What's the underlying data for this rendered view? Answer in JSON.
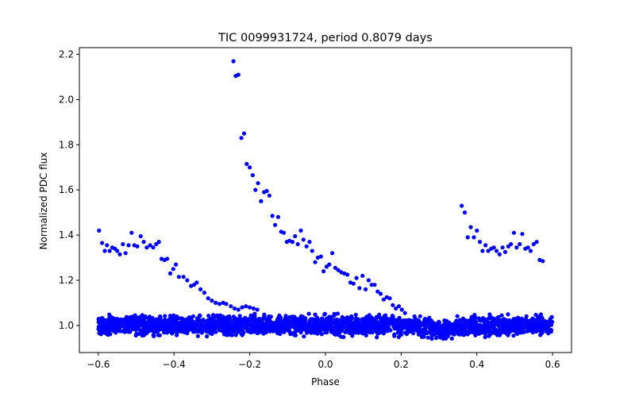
{
  "chart_data": {
    "type": "scatter",
    "title": "TIC 0099931724, period 0.8079 days",
    "xlabel": "Phase",
    "ylabel": "Normalized PDC flux",
    "xlim": [
      -0.65,
      0.65
    ],
    "ylim": [
      0.88,
      2.23
    ],
    "xticks": [
      -0.6,
      -0.4,
      -0.2,
      0.0,
      0.2,
      0.4,
      0.6
    ],
    "xtick_labels": [
      "−0.6",
      "−0.4",
      "−0.2",
      "0.0",
      "0.2",
      "0.4",
      "0.6"
    ],
    "yticks": [
      1.0,
      1.2,
      1.4,
      1.6,
      1.8,
      2.0,
      2.2
    ],
    "ytick_labels": [
      "1.0",
      "1.2",
      "1.4",
      "1.6",
      "1.8",
      "2.0",
      "2.2"
    ],
    "grid": false,
    "legend": "none",
    "marker_color": "#0000ff",
    "baseline_band": {
      "description": "dense cloud of points spanning the full phase range",
      "x_range": [
        -0.6,
        0.6
      ],
      "y_center": 1.0,
      "y_spread": [
        0.94,
        1.06
      ]
    },
    "series": [
      {
        "values": [
          {
            "x": -0.598,
            "y": 1.42
          },
          {
            "x": -0.59,
            "y": 1.365
          },
          {
            "x": -0.583,
            "y": 1.33
          },
          {
            "x": -0.577,
            "y": 1.355
          },
          {
            "x": -0.57,
            "y": 1.33
          },
          {
            "x": -0.563,
            "y": 1.345
          },
          {
            "x": -0.556,
            "y": 1.34
          },
          {
            "x": -0.55,
            "y": 1.33
          },
          {
            "x": -0.543,
            "y": 1.315
          },
          {
            "x": -0.535,
            "y": 1.36
          },
          {
            "x": -0.528,
            "y": 1.32
          },
          {
            "x": -0.52,
            "y": 1.355
          },
          {
            "x": -0.512,
            "y": 1.41
          },
          {
            "x": -0.505,
            "y": 1.355
          },
          {
            "x": -0.497,
            "y": 1.35
          },
          {
            "x": -0.488,
            "y": 1.395
          },
          {
            "x": -0.48,
            "y": 1.37
          },
          {
            "x": -0.472,
            "y": 1.345
          },
          {
            "x": -0.463,
            "y": 1.355
          },
          {
            "x": -0.455,
            "y": 1.345
          },
          {
            "x": -0.447,
            "y": 1.36
          },
          {
            "x": -0.44,
            "y": 1.37
          },
          {
            "x": -0.433,
            "y": 1.295
          },
          {
            "x": -0.425,
            "y": 1.29
          },
          {
            "x": -0.418,
            "y": 1.295
          },
          {
            "x": -0.41,
            "y": 1.23
          },
          {
            "x": -0.402,
            "y": 1.25
          },
          {
            "x": -0.395,
            "y": 1.27
          },
          {
            "x": -0.387,
            "y": 1.215
          },
          {
            "x": -0.375,
            "y": 1.215
          },
          {
            "x": -0.365,
            "y": 1.2
          },
          {
            "x": -0.355,
            "y": 1.175
          },
          {
            "x": -0.347,
            "y": 1.18
          },
          {
            "x": -0.34,
            "y": 1.19
          },
          {
            "x": -0.33,
            "y": 1.16
          },
          {
            "x": -0.32,
            "y": 1.145
          },
          {
            "x": -0.31,
            "y": 1.12
          },
          {
            "x": -0.3,
            "y": 1.11
          },
          {
            "x": -0.29,
            "y": 1.1
          },
          {
            "x": -0.28,
            "y": 1.095
          },
          {
            "x": -0.27,
            "y": 1.1
          },
          {
            "x": -0.262,
            "y": 1.095
          },
          {
            "x": -0.25,
            "y": 1.085
          },
          {
            "x": -0.24,
            "y": 1.075
          },
          {
            "x": -0.23,
            "y": 1.07
          },
          {
            "x": -0.22,
            "y": 1.08
          },
          {
            "x": -0.21,
            "y": 1.085
          },
          {
            "x": -0.2,
            "y": 1.08
          },
          {
            "x": -0.19,
            "y": 1.075
          },
          {
            "x": -0.18,
            "y": 1.07
          }
        ]
      },
      {
        "values": [
          {
            "x": -0.243,
            "y": 2.17
          },
          {
            "x": -0.237,
            "y": 2.105
          },
          {
            "x": -0.23,
            "y": 2.11
          },
          {
            "x": -0.222,
            "y": 1.83
          },
          {
            "x": -0.215,
            "y": 1.85
          },
          {
            "x": -0.208,
            "y": 1.715
          },
          {
            "x": -0.2,
            "y": 1.7
          },
          {
            "x": -0.192,
            "y": 1.665
          },
          {
            "x": -0.185,
            "y": 1.6
          },
          {
            "x": -0.178,
            "y": 1.63
          },
          {
            "x": -0.17,
            "y": 1.55
          },
          {
            "x": -0.162,
            "y": 1.59
          },
          {
            "x": -0.155,
            "y": 1.595
          },
          {
            "x": -0.148,
            "y": 1.575
          },
          {
            "x": -0.14,
            "y": 1.485
          },
          {
            "x": -0.133,
            "y": 1.445
          },
          {
            "x": -0.125,
            "y": 1.48
          },
          {
            "x": -0.117,
            "y": 1.415
          },
          {
            "x": -0.11,
            "y": 1.41
          },
          {
            "x": -0.102,
            "y": 1.37
          },
          {
            "x": -0.095,
            "y": 1.375
          },
          {
            "x": -0.087,
            "y": 1.37
          },
          {
            "x": -0.08,
            "y": 1.395
          },
          {
            "x": -0.073,
            "y": 1.36
          },
          {
            "x": -0.065,
            "y": 1.42
          },
          {
            "x": -0.058,
            "y": 1.38
          },
          {
            "x": -0.05,
            "y": 1.35
          },
          {
            "x": -0.042,
            "y": 1.37
          },
          {
            "x": -0.035,
            "y": 1.33
          },
          {
            "x": -0.027,
            "y": 1.28
          },
          {
            "x": -0.02,
            "y": 1.3
          },
          {
            "x": -0.012,
            "y": 1.305
          },
          {
            "x": -0.005,
            "y": 1.24
          },
          {
            "x": 0.003,
            "y": 1.26
          },
          {
            "x": 0.01,
            "y": 1.27
          },
          {
            "x": 0.018,
            "y": 1.32
          },
          {
            "x": 0.026,
            "y": 1.255
          },
          {
            "x": 0.034,
            "y": 1.245
          },
          {
            "x": 0.042,
            "y": 1.235
          },
          {
            "x": 0.05,
            "y": 1.23
          },
          {
            "x": 0.058,
            "y": 1.225
          },
          {
            "x": 0.066,
            "y": 1.19
          },
          {
            "x": 0.074,
            "y": 1.185
          },
          {
            "x": 0.082,
            "y": 1.21
          },
          {
            "x": 0.09,
            "y": 1.165
          },
          {
            "x": 0.098,
            "y": 1.22
          },
          {
            "x": 0.106,
            "y": 1.16
          },
          {
            "x": 0.114,
            "y": 1.2
          },
          {
            "x": 0.122,
            "y": 1.18
          },
          {
            "x": 0.13,
            "y": 1.18
          },
          {
            "x": 0.138,
            "y": 1.15
          },
          {
            "x": 0.146,
            "y": 1.14
          },
          {
            "x": 0.154,
            "y": 1.115
          },
          {
            "x": 0.162,
            "y": 1.125
          },
          {
            "x": 0.17,
            "y": 1.12
          },
          {
            "x": 0.178,
            "y": 1.09
          },
          {
            "x": 0.186,
            "y": 1.075
          },
          {
            "x": 0.194,
            "y": 1.085
          },
          {
            "x": 0.202,
            "y": 1.07
          },
          {
            "x": 0.21,
            "y": 1.055
          }
        ]
      },
      {
        "values": [
          {
            "x": 0.36,
            "y": 1.53
          },
          {
            "x": 0.368,
            "y": 1.5
          },
          {
            "x": 0.376,
            "y": 1.39
          },
          {
            "x": 0.384,
            "y": 1.435
          },
          {
            "x": 0.392,
            "y": 1.39
          },
          {
            "x": 0.4,
            "y": 1.42
          },
          {
            "x": 0.408,
            "y": 1.37
          },
          {
            "x": 0.415,
            "y": 1.33
          },
          {
            "x": 0.423,
            "y": 1.355
          },
          {
            "x": 0.43,
            "y": 1.33
          },
          {
            "x": 0.438,
            "y": 1.34
          },
          {
            "x": 0.445,
            "y": 1.345
          },
          {
            "x": 0.452,
            "y": 1.33
          },
          {
            "x": 0.46,
            "y": 1.315
          },
          {
            "x": 0.468,
            "y": 1.345
          },
          {
            "x": 0.475,
            "y": 1.325
          },
          {
            "x": 0.483,
            "y": 1.35
          },
          {
            "x": 0.49,
            "y": 1.36
          },
          {
            "x": 0.498,
            "y": 1.41
          },
          {
            "x": 0.505,
            "y": 1.345
          },
          {
            "x": 0.513,
            "y": 1.36
          },
          {
            "x": 0.52,
            "y": 1.405
          },
          {
            "x": 0.528,
            "y": 1.34
          },
          {
            "x": 0.535,
            "y": 1.345
          },
          {
            "x": 0.542,
            "y": 1.33
          },
          {
            "x": 0.55,
            "y": 1.36
          },
          {
            "x": 0.558,
            "y": 1.37
          },
          {
            "x": 0.566,
            "y": 1.29
          },
          {
            "x": 0.574,
            "y": 1.285
          }
        ]
      }
    ]
  }
}
